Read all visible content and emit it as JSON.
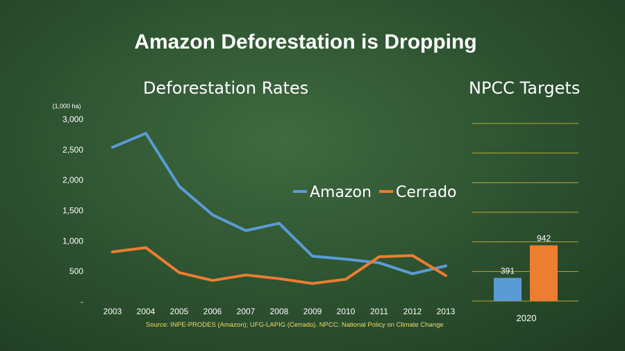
{
  "title": "Amazon Deforestation is Dropping",
  "source_note": "Source: INPE-PRODES (Amazon); UFG-LAPIG (Cerrado). NPCC: National Policy on Climate Change",
  "colors": {
    "amazon": "#5b9bd5",
    "cerrado": "#ed7d31",
    "gridline": "#b8a935",
    "text": "#ffffff",
    "source_text": "#f2d96b"
  },
  "chart_data": [
    {
      "type": "line",
      "title": "Deforestation Rates",
      "unit_label": "(1,000 ha)",
      "x": [
        "2003",
        "2004",
        "2005",
        "2006",
        "2007",
        "2008",
        "2009",
        "2010",
        "2011",
        "2012",
        "2013"
      ],
      "series": [
        {
          "name": "Amazon",
          "values": [
            2540,
            2770,
            1900,
            1430,
            1170,
            1290,
            750,
            700,
            640,
            460,
            590
          ]
        },
        {
          "name": "Cerrado",
          "values": [
            820,
            890,
            480,
            350,
            440,
            380,
            300,
            370,
            740,
            760,
            430
          ]
        }
      ],
      "ylim": [
        0,
        3000
      ],
      "y_ticks": [
        {
          "value": 0,
          "label": "-"
        },
        {
          "value": 500,
          "label": "500"
        },
        {
          "value": 1000,
          "label": "1,000"
        },
        {
          "value": 1500,
          "label": "1,500"
        },
        {
          "value": 2000,
          "label": "2,000"
        },
        {
          "value": 2500,
          "label": "2,500"
        },
        {
          "value": 3000,
          "label": "3,000"
        }
      ],
      "grid": false,
      "legend": "middle-right"
    },
    {
      "type": "bar",
      "title": "NPCC Targets",
      "categories": [
        "2020"
      ],
      "series": [
        {
          "name": "Amazon",
          "values": [
            391
          ]
        },
        {
          "name": "Cerrado",
          "values": [
            942
          ]
        }
      ],
      "data_labels": [
        "391",
        "942"
      ],
      "ylim": [
        0,
        3000
      ],
      "grid": true
    }
  ]
}
